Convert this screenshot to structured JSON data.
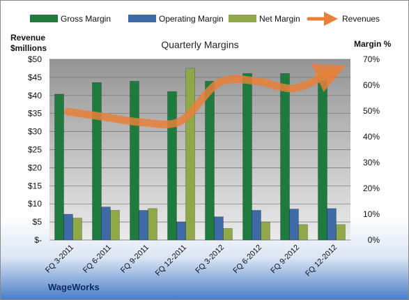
{
  "chart_data": {
    "type": "bar",
    "title": "Quarterly Margins",
    "company": "WageWorks",
    "left_axis": {
      "label_line1": "Revenue",
      "label_line2": "$millions",
      "ylim": [
        0,
        50
      ],
      "ticks": [
        "$-",
        "$5",
        "$10",
        "$15",
        "$20",
        "$25",
        "$30",
        "$35",
        "$40",
        "$45",
        "$50"
      ]
    },
    "right_axis": {
      "label": "Margin %",
      "ylim": [
        0,
        70
      ],
      "ticks": [
        "0%",
        "10%",
        "20%",
        "30%",
        "40%",
        "50%",
        "60%",
        "70%"
      ]
    },
    "categories": [
      "FQ 3-2011",
      "FQ 6-2011",
      "FQ 9-2011",
      "FQ 12-2011",
      "FQ 3-2012",
      "FQ 6-2012",
      "FQ 9-2012",
      "FQ 12-2012"
    ],
    "series": [
      {
        "name": "Gross Margin",
        "kind": "bar",
        "axis": "right",
        "color": "#1f7a3e",
        "values": [
          56.5,
          61,
          61.5,
          57.5,
          61.5,
          64.5,
          64.5,
          64
        ]
      },
      {
        "name": "Operating Margin",
        "kind": "bar",
        "axis": "right",
        "color": "#3f6aa8",
        "values": [
          10,
          12.8,
          11.5,
          7,
          9,
          11.5,
          12,
          12.2
        ]
      },
      {
        "name": "Net Margin",
        "kind": "bar",
        "axis": "right",
        "color": "#8ea84a",
        "values": [
          8.5,
          11.5,
          12.2,
          66.5,
          4.5,
          7,
          6,
          6
        ]
      },
      {
        "name": "Revenues",
        "kind": "line",
        "axis": "left",
        "color": "#e8803a",
        "values": [
          35.5,
          34,
          32.5,
          33,
          43.5,
          44,
          42,
          46.5
        ]
      }
    ],
    "grid": true,
    "legend_position": "top"
  }
}
